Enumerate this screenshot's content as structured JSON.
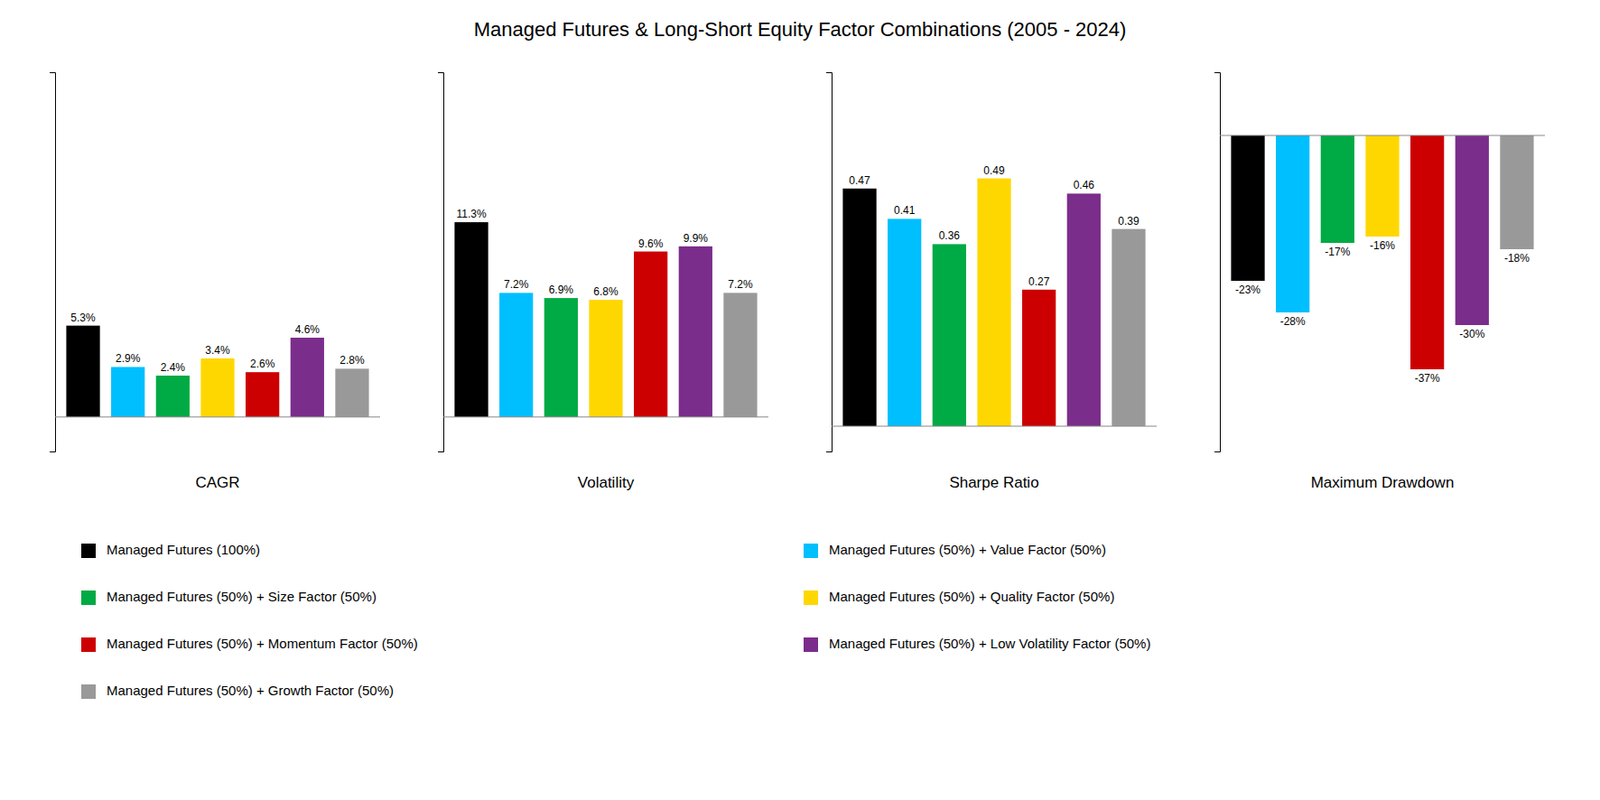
{
  "chart_data": [
    {
      "type": "bar",
      "title": "Managed Futures & Long-Short Equity Factor Combinations (2005 - 2024)",
      "xlabel": "CAGR",
      "ylim": [
        -2,
        20
      ],
      "yticks": [],
      "tick_labels": false,
      "data_labels": true,
      "series": [
        {
          "name": "Managed Futures (100%)",
          "color": "#000000",
          "values": [
            5.3
          ],
          "value_labels": [
            "5.3%"
          ]
        },
        {
          "name": "Managed Futures (50%) + Value Factor (50%)",
          "color": "#00BFFF",
          "values": [
            2.9
          ],
          "value_labels": [
            "2.9%"
          ]
        },
        {
          "name": "Managed Futures (50%) + Size Factor (50%)",
          "color": "#00AA44",
          "values": [
            2.4
          ],
          "value_labels": [
            "2.4%"
          ]
        },
        {
          "name": "Managed Futures (50%) + Quality Factor (50%)",
          "color": "#FFD700",
          "values": [
            3.4
          ],
          "value_labels": [
            "3.4%"
          ]
        },
        {
          "name": "Managed Futures (50%) + Momentum Factor (50%)",
          "color": "#CC0000",
          "values": [
            2.6
          ],
          "value_labels": [
            "2.6%"
          ]
        },
        {
          "name": "Managed Futures (50%) + Low Volatility Factor (50%)",
          "color": "#7B2D8B",
          "values": [
            4.6
          ],
          "value_labels": [
            "4.6%"
          ]
        },
        {
          "name": "Managed Futures (50%) + Growth Factor (50%)",
          "color": "#999999",
          "values": [
            2.8
          ],
          "value_labels": [
            "2.8%"
          ]
        }
      ]
    },
    {
      "type": "bar",
      "xlabel": "Volatility",
      "ylim": [
        -2,
        20
      ],
      "yticks": [],
      "tick_labels": false,
      "data_labels": true,
      "series": [
        {
          "color": "#000000",
          "values": [
            11.3
          ],
          "value_labels": [
            "11.3%"
          ]
        },
        {
          "color": "#00BFFF",
          "values": [
            7.2
          ],
          "value_labels": [
            "7.2%"
          ]
        },
        {
          "color": "#00AA44",
          "values": [
            6.9
          ],
          "value_labels": [
            "6.9%"
          ]
        },
        {
          "color": "#FFD700",
          "values": [
            6.8
          ],
          "value_labels": [
            "6.8%"
          ]
        },
        {
          "color": "#CC0000",
          "values": [
            9.6
          ],
          "value_labels": [
            "9.6%"
          ]
        },
        {
          "color": "#7B2D8B",
          "values": [
            9.9
          ],
          "value_labels": [
            "9.9%"
          ]
        },
        {
          "color": "#999999",
          "values": [
            7.2
          ],
          "value_labels": [
            "7.2%"
          ]
        }
      ]
    },
    {
      "type": "bar",
      "xlabel": "Sharpe Ratio",
      "ylim": [
        -0.05,
        0.7
      ],
      "yticks": [],
      "tick_labels": false,
      "data_labels": true,
      "series": [
        {
          "color": "#000000",
          "values": [
            0.47
          ],
          "value_labels": [
            "0.47"
          ]
        },
        {
          "color": "#00BFFF",
          "values": [
            0.41
          ],
          "value_labels": [
            "0.41"
          ]
        },
        {
          "color": "#00AA44",
          "values": [
            0.36
          ],
          "value_labels": [
            "0.36"
          ]
        },
        {
          "color": "#FFD700",
          "values": [
            0.49
          ],
          "value_labels": [
            "0.49"
          ]
        },
        {
          "color": "#CC0000",
          "values": [
            0.27
          ],
          "value_labels": [
            "0.27"
          ]
        },
        {
          "color": "#7B2D8B",
          "values": [
            0.46
          ],
          "value_labels": [
            "0.46"
          ]
        },
        {
          "color": "#999999",
          "values": [
            0.39
          ],
          "value_labels": [
            "0.39"
          ]
        }
      ]
    },
    {
      "type": "bar",
      "xlabel": "Maximum Drawdown",
      "ylim": [
        -50,
        10
      ],
      "yticks": [],
      "tick_labels": false,
      "data_labels": true,
      "series": [
        {
          "color": "#000000",
          "values": [
            -23
          ],
          "value_labels": [
            "-23%"
          ]
        },
        {
          "color": "#00BFFF",
          "values": [
            -28
          ],
          "value_labels": [
            "-28%"
          ]
        },
        {
          "color": "#00AA44",
          "values": [
            -17
          ],
          "value_labels": [
            "-17%"
          ]
        },
        {
          "color": "#FFD700",
          "values": [
            -16
          ],
          "value_labels": [
            "-16%"
          ]
        },
        {
          "color": "#CC0000",
          "values": [
            -37
          ],
          "value_labels": [
            "-37%"
          ]
        },
        {
          "color": "#7B2D8B",
          "values": [
            -30
          ],
          "value_labels": [
            "-30%"
          ]
        },
        {
          "color": "#999999",
          "values": [
            -18
          ],
          "value_labels": [
            "-18%"
          ]
        }
      ]
    }
  ]
}
